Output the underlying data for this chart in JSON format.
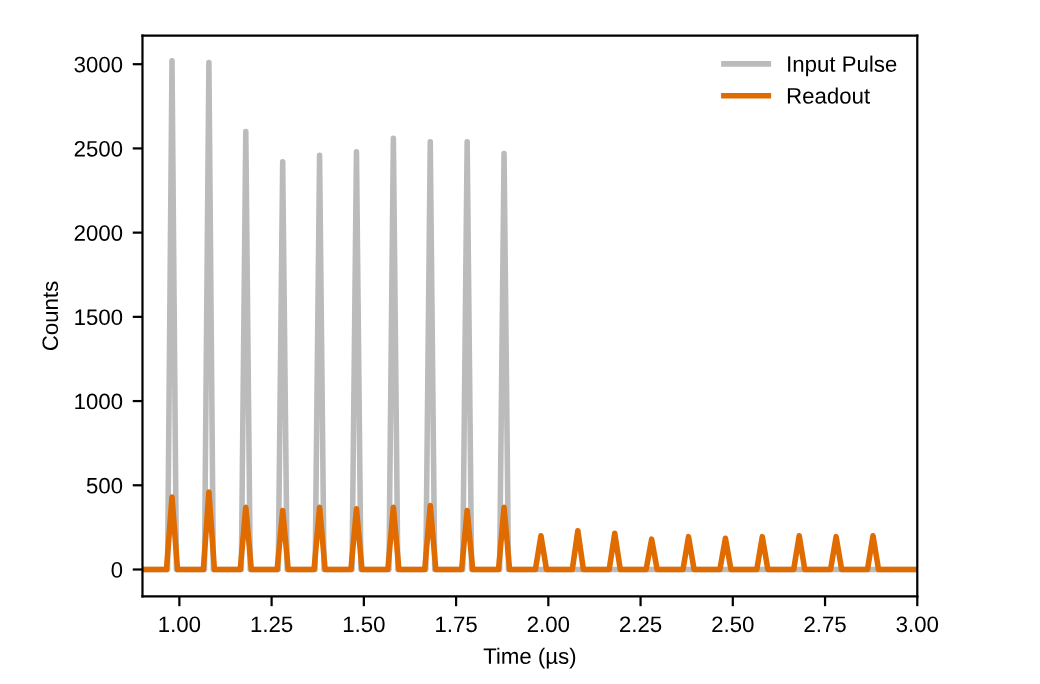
{
  "chart_data": {
    "type": "line",
    "xlabel": "Time (µs)",
    "ylabel": "Counts",
    "xlim": [
      0.9,
      3.0
    ],
    "ylim": [
      -160,
      3170
    ],
    "xticks": [
      {
        "value": 1.0,
        "label": "1.00"
      },
      {
        "value": 1.25,
        "label": "1.25"
      },
      {
        "value": 1.5,
        "label": "1.50"
      },
      {
        "value": 1.75,
        "label": "1.75"
      },
      {
        "value": 2.0,
        "label": "2.00"
      },
      {
        "value": 2.25,
        "label": "2.25"
      },
      {
        "value": 2.5,
        "label": "2.50"
      },
      {
        "value": 2.75,
        "label": "2.75"
      },
      {
        "value": 3.0,
        "label": "3.00"
      }
    ],
    "yticks": [
      0,
      500,
      1000,
      1500,
      2000,
      2500,
      3000
    ],
    "grid": false,
    "legend": "top right",
    "marker": "none",
    "line_style": "solid",
    "series": [
      {
        "name": "Input Pulse",
        "color": "#bbbbbb",
        "x": [
          0.9,
          0.968,
          0.98,
          0.992,
          1.068,
          1.08,
          1.092,
          1.168,
          1.18,
          1.192,
          1.268,
          1.28,
          1.292,
          1.368,
          1.38,
          1.392,
          1.468,
          1.48,
          1.492,
          1.568,
          1.58,
          1.592,
          1.668,
          1.68,
          1.692,
          1.768,
          1.78,
          1.792,
          1.868,
          1.88,
          1.892,
          3.0
        ],
        "values": [
          0,
          0,
          3020,
          0,
          0,
          3010,
          0,
          0,
          2600,
          0,
          0,
          2420,
          0,
          0,
          2460,
          0,
          0,
          2480,
          0,
          0,
          2560,
          0,
          0,
          2540,
          0,
          0,
          2540,
          0,
          0,
          2470,
          0,
          0
        ]
      },
      {
        "name": "Readout",
        "color": "#e06c00",
        "x": [
          0.9,
          0.965,
          0.98,
          0.995,
          1.065,
          1.08,
          1.095,
          1.165,
          1.18,
          1.195,
          1.265,
          1.28,
          1.295,
          1.365,
          1.38,
          1.395,
          1.465,
          1.48,
          1.495,
          1.565,
          1.58,
          1.595,
          1.665,
          1.68,
          1.695,
          1.765,
          1.78,
          1.795,
          1.865,
          1.88,
          1.895,
          1.965,
          1.98,
          1.995,
          2.065,
          2.08,
          2.095,
          2.165,
          2.18,
          2.195,
          2.265,
          2.28,
          2.295,
          2.365,
          2.38,
          2.395,
          2.465,
          2.48,
          2.495,
          2.565,
          2.58,
          2.595,
          2.665,
          2.68,
          2.695,
          2.765,
          2.78,
          2.795,
          2.865,
          2.88,
          2.895,
          3.0
        ],
        "values": [
          0,
          0,
          430,
          0,
          0,
          460,
          0,
          0,
          370,
          0,
          0,
          350,
          0,
          0,
          370,
          0,
          0,
          360,
          0,
          0,
          370,
          0,
          0,
          380,
          0,
          0,
          350,
          0,
          0,
          370,
          0,
          0,
          200,
          0,
          0,
          230,
          0,
          0,
          215,
          0,
          0,
          180,
          0,
          0,
          195,
          0,
          0,
          185,
          0,
          0,
          195,
          0,
          0,
          200,
          0,
          0,
          195,
          0,
          0,
          200,
          0,
          0
        ]
      }
    ]
  }
}
